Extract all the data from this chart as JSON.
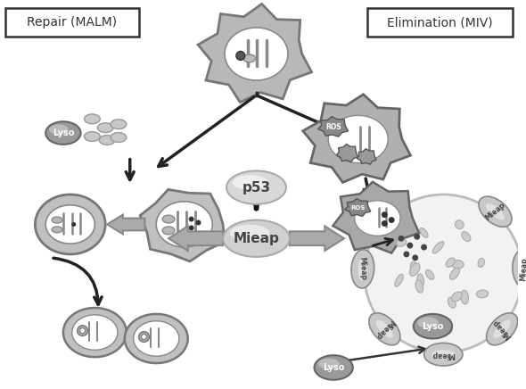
{
  "bg_color": "#ffffff",
  "label_repair": "Repair (MALM)",
  "label_elim": "Elimination (MIV)",
  "label_p53": "p53",
  "label_mieap": "Mieap",
  "label_lyso": "Lyso",
  "label_ros": "ROS",
  "gray_dark": "#555555",
  "gray_mid": "#888888",
  "gray_light": "#aaaaaa",
  "gray_mito": "#b8b8b8",
  "gray_mito_inner": "#d8d8d8",
  "gray_mito_stroke": "#777777",
  "gray_lyso": "#999999",
  "gray_lyso_stroke": "#666666",
  "gray_p53": "#d5d5d5",
  "gray_mieap_oval": "#cccccc",
  "gray_large_circle": "#eeeeee",
  "gray_large_stroke": "#bbbbbb",
  "gray_arrow": "#aaaaaa",
  "black_arrow": "#222222",
  "spike_color": "#888888",
  "spike_fill": "#aaaaaa",
  "white": "#ffffff"
}
